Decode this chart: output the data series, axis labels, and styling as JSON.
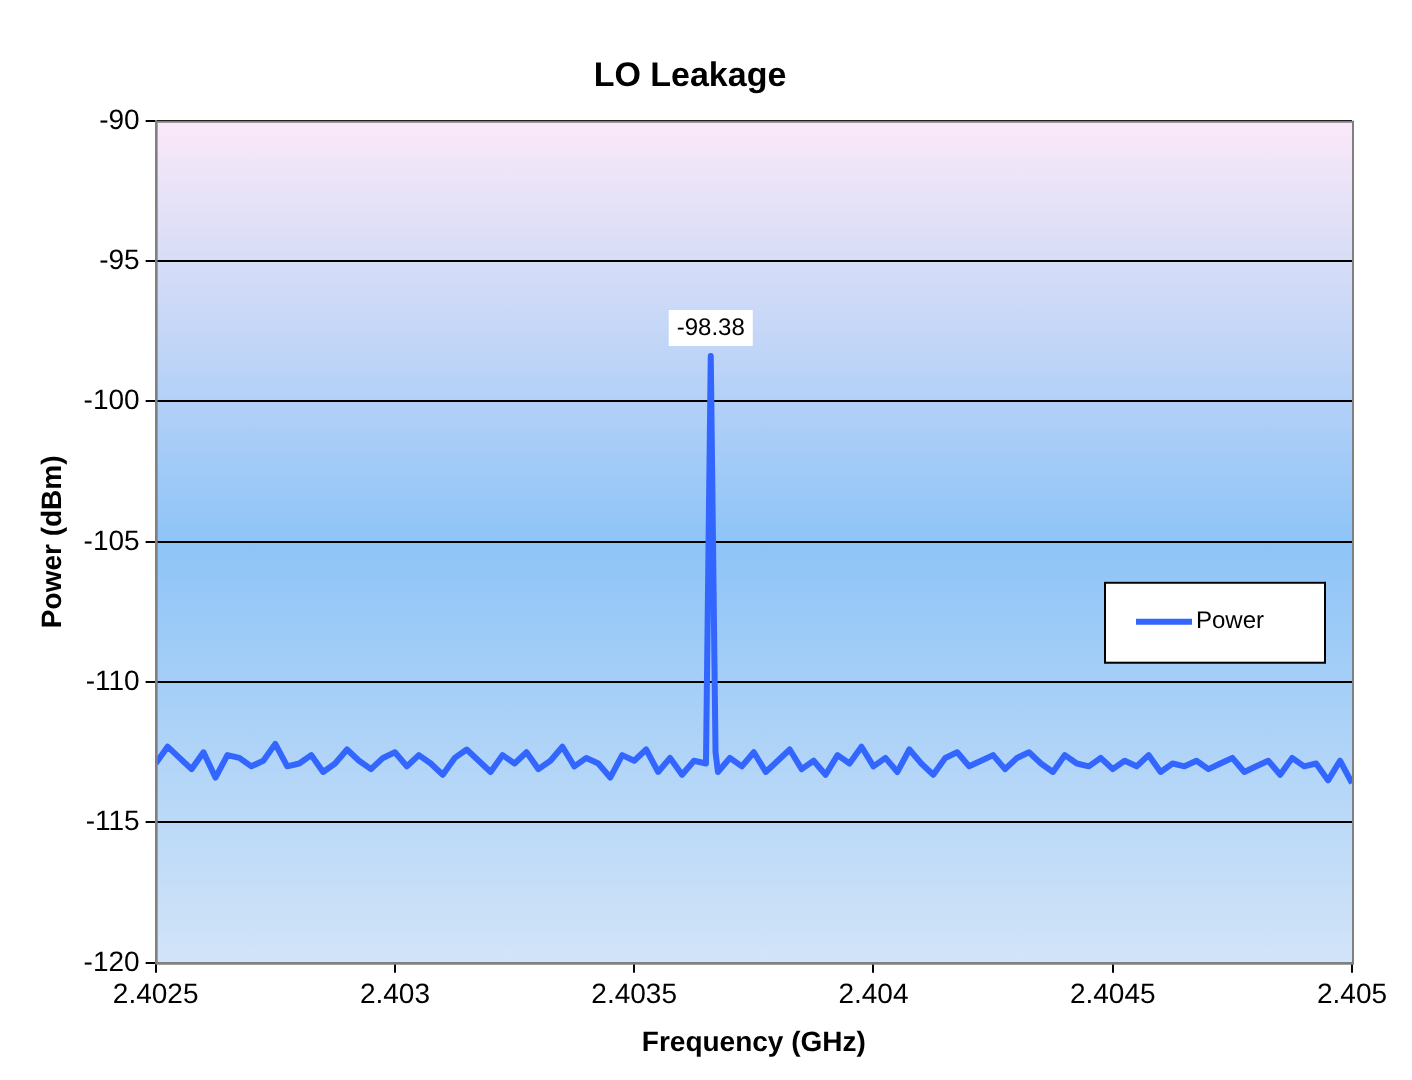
{
  "chart_data": {
    "type": "line",
    "title": "LO Leakage",
    "xlabel": "Frequency (GHz)",
    "ylabel": "Power (dBm)",
    "xlim": [
      2.4025,
      2.405
    ],
    "xticks": [
      2.4025,
      2.403,
      2.4035,
      2.404,
      2.4045,
      2.405
    ],
    "ylim": [
      -120,
      -90
    ],
    "yticks": [
      -120,
      -115,
      -110,
      -105,
      -100,
      -95,
      -90
    ],
    "grid": "y",
    "legend": "right",
    "marker": "none",
    "line_style": "solid",
    "annotations": [
      {
        "text": "-98.38",
        "x": 2.40366,
        "y": -98.38
      }
    ],
    "series": [
      {
        "name": "Power",
        "color": "#3366ff",
        "x": [
          2.4025,
          2.402525,
          2.40255,
          2.402575,
          2.4026,
          2.402625,
          2.40265,
          2.402675,
          2.4027,
          2.402725,
          2.40275,
          2.402775,
          2.4028,
          2.402825,
          2.40285,
          2.402875,
          2.4029,
          2.402925,
          2.40295,
          2.402975,
          2.403,
          2.403025,
          2.40305,
          2.403075,
          2.4031,
          2.403125,
          2.40315,
          2.403175,
          2.4032,
          2.403225,
          2.40325,
          2.403275,
          2.4033,
          2.403325,
          2.40335,
          2.403375,
          2.4034,
          2.403425,
          2.40345,
          2.403475,
          2.4035,
          2.403525,
          2.40355,
          2.403575,
          2.4036,
          2.403625,
          2.40365,
          2.40366,
          2.40367,
          2.403675,
          2.4037,
          2.403725,
          2.40375,
          2.403775,
          2.4038,
          2.403825,
          2.40385,
          2.403875,
          2.4039,
          2.403925,
          2.40395,
          2.403975,
          2.404,
          2.404025,
          2.40405,
          2.404075,
          2.4041,
          2.404125,
          2.40415,
          2.404175,
          2.4042,
          2.404225,
          2.40425,
          2.404275,
          2.4043,
          2.404325,
          2.40435,
          2.404375,
          2.4044,
          2.404425,
          2.40445,
          2.404475,
          2.4045,
          2.404525,
          2.40455,
          2.404575,
          2.4046,
          2.404625,
          2.40465,
          2.404675,
          2.4047,
          2.404725,
          2.40475,
          2.404775,
          2.4048,
          2.404825,
          2.40485,
          2.404875,
          2.4049,
          2.404925,
          2.40495,
          2.404975,
          2.405
        ],
        "values": [
          -112.9,
          -112.3,
          -112.7,
          -113.1,
          -112.5,
          -113.4,
          -112.6,
          -112.7,
          -113.0,
          -112.8,
          -112.2,
          -113.0,
          -112.9,
          -112.6,
          -113.2,
          -112.9,
          -112.4,
          -112.8,
          -113.1,
          -112.7,
          -112.5,
          -113.0,
          -112.6,
          -112.9,
          -113.3,
          -112.7,
          -112.4,
          -112.8,
          -113.2,
          -112.6,
          -112.9,
          -112.5,
          -113.1,
          -112.8,
          -112.3,
          -113.0,
          -112.7,
          -112.9,
          -113.4,
          -112.6,
          -112.8,
          -112.4,
          -113.2,
          -112.7,
          -113.3,
          -112.8,
          -112.9,
          -98.38,
          -112.5,
          -113.2,
          -112.7,
          -113.0,
          -112.5,
          -113.2,
          -112.8,
          -112.4,
          -113.1,
          -112.8,
          -113.3,
          -112.6,
          -112.9,
          -112.3,
          -113.0,
          -112.7,
          -113.2,
          -112.4,
          -112.9,
          -113.3,
          -112.7,
          -112.5,
          -113.0,
          -112.8,
          -112.6,
          -113.1,
          -112.7,
          -112.5,
          -112.9,
          -113.2,
          -112.6,
          -112.9,
          -113.0,
          -112.7,
          -113.1,
          -112.8,
          -113.0,
          -112.6,
          -113.2,
          -112.9,
          -113.0,
          -112.8,
          -113.1,
          -112.9,
          -112.7,
          -113.2,
          -113.0,
          -112.8,
          -113.3,
          -112.7,
          -113.0,
          -112.9,
          -113.5,
          -112.8,
          -113.6
        ]
      }
    ]
  }
}
